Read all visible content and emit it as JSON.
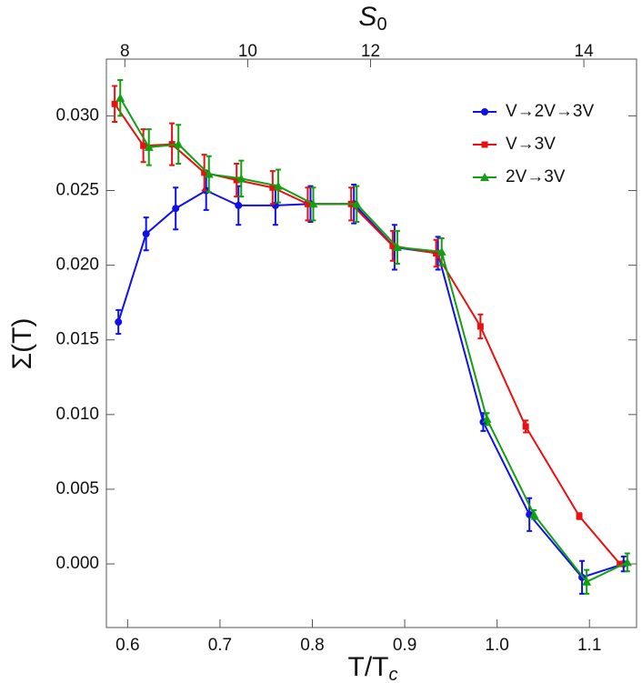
{
  "chart_data": {
    "type": "line",
    "xlabel": {
      "text": "T/T",
      "subscript": "c"
    },
    "ylabel": "Σ(T)",
    "x2label": {
      "text": "S",
      "subscript": "0"
    },
    "xlim": [
      0.577,
      1.151
    ],
    "ylim": [
      -0.00426,
      0.0338
    ],
    "xticks": [
      0.6,
      0.7,
      0.8,
      0.9,
      {
        "value": 1,
        "label": "1.0"
      },
      1.1
    ],
    "yticks": [
      {
        "value": 0,
        "label": "0.000"
      },
      {
        "value": 0.005,
        "label": "0.005"
      },
      {
        "value": 0.01,
        "label": "0.010"
      },
      {
        "value": 0.015,
        "label": "0.015"
      },
      {
        "value": 0.02,
        "label": "0.020"
      },
      {
        "value": 0.025,
        "label": "0.025"
      },
      {
        "value": 0.03,
        "label": "0.030"
      }
    ],
    "x2ticks": [
      8,
      10,
      12,
      14
    ],
    "x2ticks_at_x": [
      0.597,
      0.73,
      0.863,
      1.094
    ],
    "legend": "top-right",
    "series": [
      {
        "name": "V→2V→3V",
        "color": "#1010e8",
        "marker": "circle",
        "x": [
          0.59,
          0.62,
          0.652,
          0.685,
          0.72,
          0.76,
          0.798,
          0.845,
          0.889,
          0.936,
          0.985,
          1.035,
          1.092,
          1.137
        ],
        "values": [
          0.0162,
          0.0221,
          0.0238,
          0.025,
          0.024,
          0.024,
          0.0241,
          0.0241,
          0.0212,
          0.0208,
          0.0095,
          0.0033,
          -0.0009,
          0.0
        ],
        "errors": [
          0.0008,
          0.0011,
          0.0014,
          0.0013,
          0.0013,
          0.0013,
          0.0012,
          0.0013,
          0.0015,
          0.0011,
          0.0006,
          0.0011,
          0.0011,
          0.0005
        ]
      },
      {
        "name": "V→3V",
        "color": "#e81010",
        "marker": "square",
        "x": [
          0.586,
          0.617,
          0.648,
          0.683,
          0.718,
          0.757,
          0.795,
          0.842,
          0.887,
          0.934,
          0.982,
          1.031,
          1.089,
          1.133
        ],
        "values": [
          0.0308,
          0.028,
          0.0281,
          0.0262,
          0.0257,
          0.0252,
          0.0241,
          0.0241,
          0.0213,
          0.0208,
          0.0159,
          0.0092,
          0.0032,
          0.0
        ],
        "errors": [
          0.0012,
          0.0011,
          0.0014,
          0.0012,
          0.0011,
          0.0011,
          0.0011,
          0.0011,
          0.001,
          0.0009,
          0.0008,
          0.0004,
          0.0002,
          0.0001
        ]
      },
      {
        "name": "2V→3V",
        "color": "#10a010",
        "marker": "triangle",
        "x": [
          0.592,
          0.623,
          0.655,
          0.688,
          0.723,
          0.763,
          0.801,
          0.848,
          0.892,
          0.94,
          0.989,
          1.04,
          1.097,
          1.141
        ],
        "values": [
          0.0312,
          0.0279,
          0.0281,
          0.0261,
          0.0258,
          0.0253,
          0.0241,
          0.0241,
          0.0212,
          0.0209,
          0.0097,
          0.0033,
          -0.0012,
          0.0001
        ],
        "errors": [
          0.0012,
          0.0012,
          0.0013,
          0.0012,
          0.0012,
          0.0011,
          0.0011,
          0.0012,
          0.0011,
          0.0009,
          0.0004,
          0.0003,
          0.0008,
          0.0006
        ]
      }
    ]
  }
}
